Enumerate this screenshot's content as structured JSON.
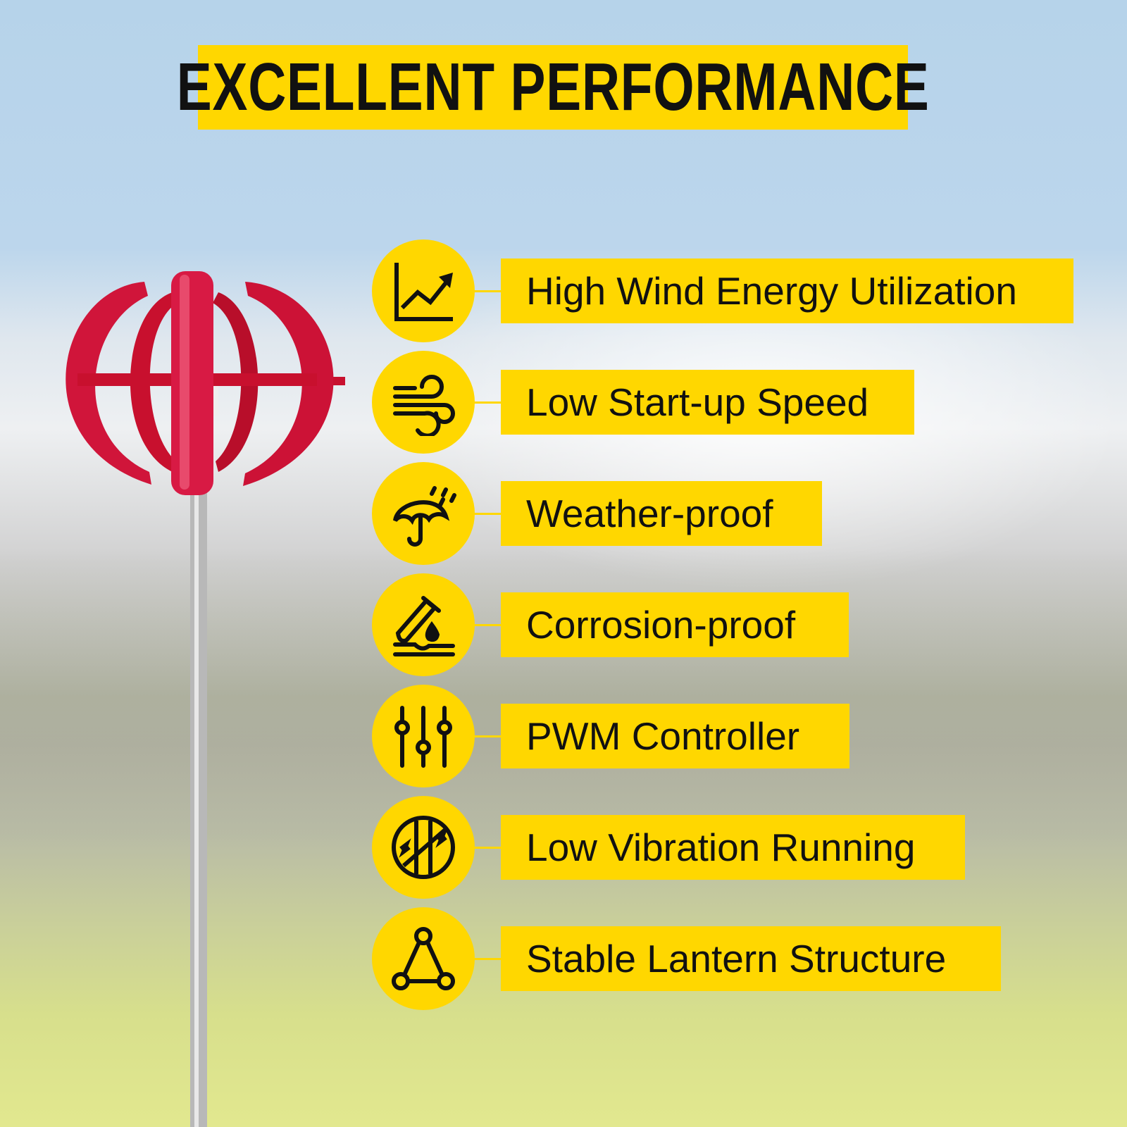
{
  "title": "EXCELLENT PERFORMANCE",
  "accent_color": "#ffd700",
  "features": [
    {
      "label": "High Wind Energy Utilization",
      "icon": "chart-growth-icon"
    },
    {
      "label": "Low Start-up Speed",
      "icon": "wind-icon"
    },
    {
      "label": "Weather-proof",
      "icon": "umbrella-rain-icon"
    },
    {
      "label": "Corrosion-proof",
      "icon": "test-tube-drop-icon"
    },
    {
      "label": "PWM Controller",
      "icon": "sliders-icon"
    },
    {
      "label": "Low Vibration Running",
      "icon": "no-vibration-icon"
    },
    {
      "label": "Stable Lantern Structure",
      "icon": "triangle-nodes-icon"
    }
  ]
}
